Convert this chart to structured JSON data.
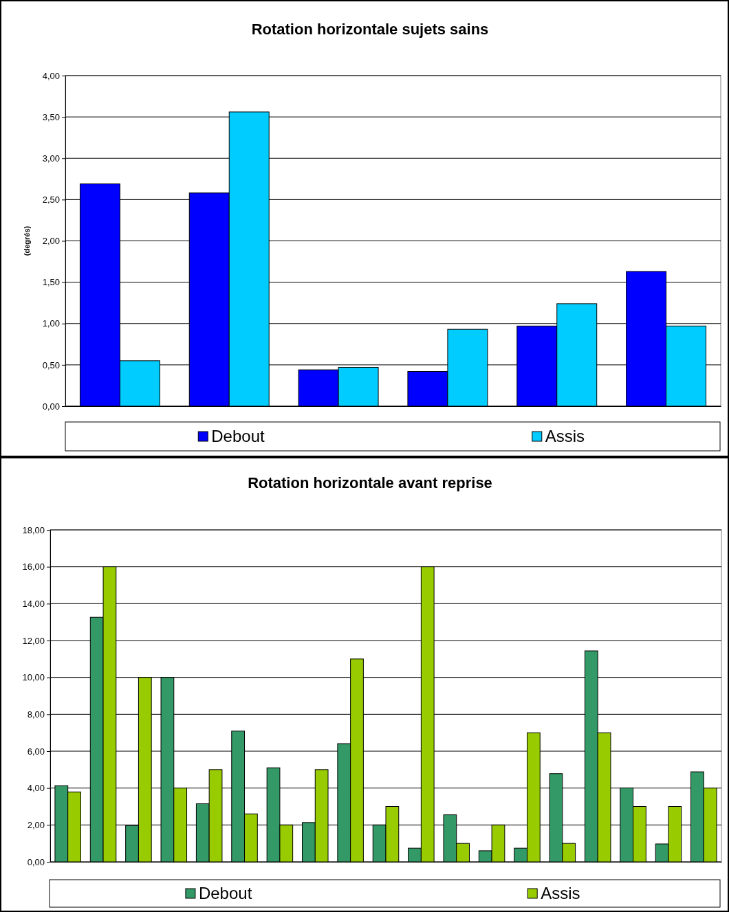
{
  "chart_data": [
    {
      "type": "bar",
      "title": "Rotation horizontale sujets sains",
      "ylabel": "(degrés)",
      "categories": [
        null,
        null,
        null,
        null,
        null,
        null
      ],
      "series": [
        {
          "name": "Debout",
          "color": "#0000ff",
          "values": [
            2.69,
            2.58,
            0.44,
            0.42,
            0.97,
            1.63
          ]
        },
        {
          "name": "Assis",
          "color": "#00ccff",
          "values": [
            0.55,
            3.56,
            0.47,
            0.93,
            1.24,
            0.97
          ]
        }
      ],
      "ylim": [
        0,
        4
      ],
      "yticks": [
        {
          "value": 0,
          "label": "0,00"
        },
        {
          "value": 0.5,
          "label": "0,50"
        },
        {
          "value": 1,
          "label": "1,00"
        },
        {
          "value": 1.5,
          "label": "1,50"
        },
        {
          "value": 2,
          "label": "2,00"
        },
        {
          "value": 2.5,
          "label": "2,50"
        },
        {
          "value": 3,
          "label": "3,00"
        },
        {
          "value": 3.5,
          "label": "3,50"
        },
        {
          "value": 4,
          "label": "4,00"
        }
      ],
      "grid": "y",
      "legend": "bottom"
    },
    {
      "type": "bar",
      "title": "Rotation horizontale avant reprise",
      "categories": [
        null,
        null,
        null,
        null,
        null,
        null,
        null,
        null,
        null,
        null,
        null,
        null,
        null,
        null,
        null,
        null,
        null,
        null,
        null
      ],
      "series": [
        {
          "name": "Debout",
          "color": "#339966",
          "values": [
            4.13,
            13.26,
            1.97,
            10,
            3.15,
            7.09,
            5.1,
            2.13,
            6.41,
            2,
            0.74,
            2.55,
            0.6,
            0.74,
            4.78,
            11.44,
            4.01,
            0.97,
            4.88
          ]
        },
        {
          "name": "Assis",
          "color": "#99cc00",
          "values": [
            3.79,
            16,
            10,
            4,
            5,
            2.6,
            2,
            5,
            11,
            3,
            16,
            1,
            2,
            7,
            1,
            7,
            3,
            3,
            4
          ]
        }
      ],
      "ylim": [
        0,
        18
      ],
      "yticks": [
        {
          "value": 0,
          "label": "0,00"
        },
        {
          "value": 2,
          "label": "2,00"
        },
        {
          "value": 4,
          "label": "4,00"
        },
        {
          "value": 6,
          "label": "6,00"
        },
        {
          "value": 8,
          "label": "8,00"
        },
        {
          "value": 10,
          "label": "10,00"
        },
        {
          "value": 12,
          "label": "12,00"
        },
        {
          "value": 14,
          "label": "14,00"
        },
        {
          "value": 16,
          "label": "16,00"
        },
        {
          "value": 18,
          "label": "18,00"
        }
      ],
      "grid": "y",
      "legend": "bottom"
    }
  ]
}
